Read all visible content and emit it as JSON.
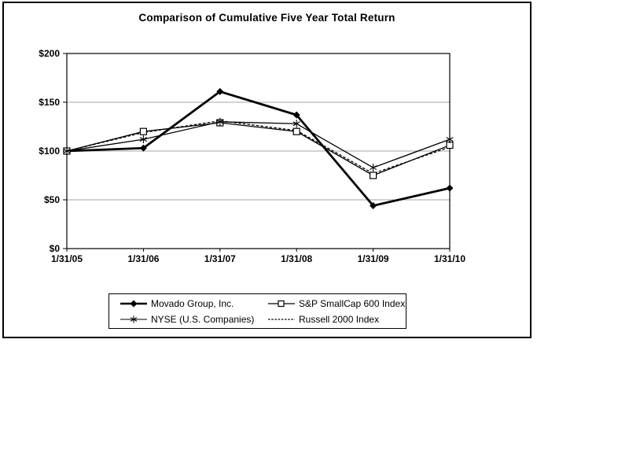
{
  "chart_data": {
    "type": "line",
    "title": "Comparison of Cumulative Five Year Total Return",
    "x_labels": [
      "1/31/05",
      "1/31/06",
      "1/31/07",
      "1/31/08",
      "1/31/09",
      "1/31/10"
    ],
    "ylim": [
      0,
      200
    ],
    "y_ticks": [
      {
        "label": "$0",
        "value": 0
      },
      {
        "label": "$50",
        "value": 50
      },
      {
        "label": "$100",
        "value": 100
      },
      {
        "label": "$150",
        "value": 150
      },
      {
        "label": "$200",
        "value": 200
      }
    ],
    "grid": "horizontal-only",
    "legend_position": "bottom-boxed",
    "colors": {
      "line": "#000000",
      "grid": "#a6a6a6",
      "background": "#ffffff"
    },
    "series": [
      {
        "id": "movado",
        "name": "Movado Group, Inc.",
        "marker": "diamond",
        "line": "thick-solid",
        "values": [
          100,
          103,
          161,
          137,
          44,
          62
        ]
      },
      {
        "id": "sp-smallcap-600",
        "name": "S&P SmallCap 600 Index",
        "marker": "square-open",
        "line": "thin-solid",
        "values": [
          100,
          120,
          129,
          120,
          75,
          106
        ]
      },
      {
        "id": "nyse",
        "name": "NYSE (U.S. Companies)",
        "marker": "asterisk",
        "line": "thin-solid",
        "values": [
          100,
          112,
          130,
          128,
          83,
          112
        ]
      },
      {
        "id": "russell-2000",
        "name": "Russell 2000 Index",
        "marker": "none",
        "line": "dashed",
        "values": [
          100,
          119,
          131,
          121,
          77,
          104
        ]
      }
    ]
  }
}
